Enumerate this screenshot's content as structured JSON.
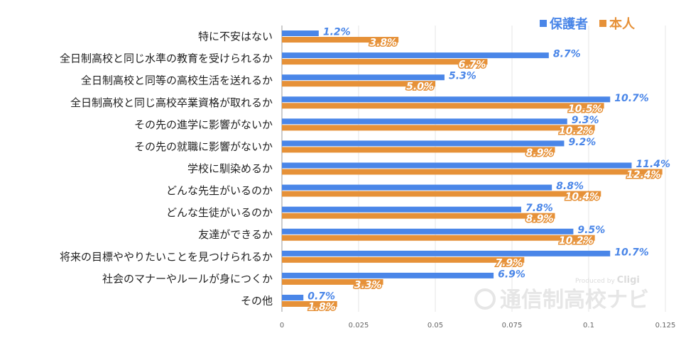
{
  "legend": {
    "parent_label": "保護者",
    "self_label": "本人"
  },
  "watermark": {
    "text": "通信制高校ナビ",
    "produced_by": "Produced by",
    "brand": "Cligi"
  },
  "colors": {
    "parent": "#4a86e8",
    "self": "#e69138"
  },
  "chart_data": {
    "type": "bar",
    "orientation": "horizontal",
    "categories": [
      "特に不安はない",
      "全日制高校と同じ水準の教育を受けられるか",
      "全日制高校と同等の高校生活を送れるか",
      "全日制高校と同じ高校卒業資格が取れるか",
      "その先の進学に影響がないか",
      "その先の就職に影響がないか",
      "学校に馴染めるか",
      "どんな先生がいるのか",
      "どんな生徒がいるのか",
      "友達ができるか",
      "将来の目標ややりたいことを見つけられるか",
      "社会のマナーやルールが身につくか",
      "その他"
    ],
    "series": [
      {
        "name": "保護者",
        "color": "#4a86e8",
        "values": [
          0.012,
          0.087,
          0.053,
          0.107,
          0.093,
          0.092,
          0.114,
          0.088,
          0.078,
          0.095,
          0.107,
          0.069,
          0.007
        ],
        "labels": [
          "1.2%",
          "8.7%",
          "5.3%",
          "10.7%",
          "9.3%",
          "9.2%",
          "11.4%",
          "8.8%",
          "7.8%",
          "9.5%",
          "10.7%",
          "6.9%",
          "0.7%"
        ]
      },
      {
        "name": "本人",
        "color": "#e69138",
        "values": [
          0.038,
          0.067,
          0.05,
          0.105,
          0.102,
          0.089,
          0.124,
          0.104,
          0.089,
          0.102,
          0.079,
          0.033,
          0.018
        ],
        "labels": [
          "3.8%",
          "6.7%",
          "5.0%",
          "10.5%",
          "10.2%",
          "8.9%",
          "12.4%",
          "10.4%",
          "8.9%",
          "10.2%",
          "7.9%",
          "3.3%",
          "1.8%"
        ]
      }
    ],
    "xlim": [
      0,
      0.125
    ],
    "xticks": [
      "0",
      "0.025",
      "0.05",
      "0.075",
      "0.1",
      "0.125"
    ],
    "grid": true,
    "legend_position": "top-right"
  }
}
